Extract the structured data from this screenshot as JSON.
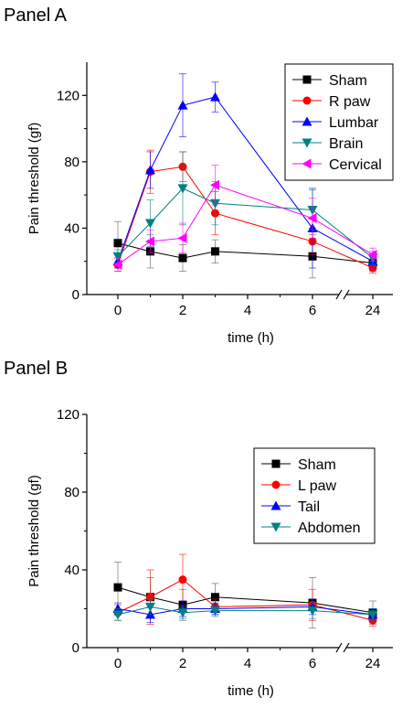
{
  "panels": {
    "a_title": "Panel A",
    "b_title": "Panel B"
  },
  "chart_data": [
    {
      "type": "line",
      "title": "Panel A",
      "xlabel": "time (h)",
      "ylabel": "Pain threshold (gf)",
      "x_ticks": [
        "0",
        "2",
        "4",
        "6",
        "24"
      ],
      "x": [
        0,
        1,
        2,
        3,
        6,
        24
      ],
      "ylim": [
        0,
        140
      ],
      "y_ticks": [
        "0",
        "40",
        "80",
        "120"
      ],
      "x_axis_break": "between 6 and 24",
      "legend_position": "top-right",
      "grid": false,
      "series": [
        {
          "name": "Sham",
          "color": "#000000",
          "marker": "square",
          "values": [
            31,
            26,
            22,
            26,
            23,
            19
          ],
          "errors": [
            13,
            10,
            8,
            7,
            13,
            5
          ]
        },
        {
          "name": "R paw",
          "color": "#ff0000",
          "marker": "circle",
          "values": [
            18,
            74,
            77,
            49,
            32,
            16
          ],
          "errors": [
            4,
            13,
            9,
            13,
            8,
            3
          ]
        },
        {
          "name": "Lumbar",
          "color": "#0000ff",
          "marker": "triangle-up",
          "values": [
            20,
            75,
            114,
            119,
            40,
            20
          ],
          "errors": [
            4,
            11,
            19,
            9,
            24,
            4
          ]
        },
        {
          "name": "Brain",
          "color": "#008080",
          "marker": "triangle-down",
          "values": [
            23,
            43,
            64,
            55,
            51,
            22
          ],
          "errors": [
            4,
            14,
            22,
            13,
            12,
            4
          ]
        },
        {
          "name": "Cervical",
          "color": "#ff00ff",
          "marker": "triangle-left",
          "values": [
            18,
            32,
            34,
            66,
            46,
            24
          ],
          "errors": [
            4,
            7,
            9,
            12,
            12,
            4
          ]
        }
      ]
    },
    {
      "type": "line",
      "title": "Panel B",
      "xlabel": "time (h)",
      "ylabel": "Pain threshold (gf)",
      "x_ticks": [
        "0",
        "2",
        "4",
        "6",
        "24"
      ],
      "x": [
        0,
        1,
        2,
        3,
        6,
        24
      ],
      "ylim": [
        0,
        120
      ],
      "y_ticks": [
        "0",
        "40",
        "80",
        "120"
      ],
      "x_axis_break": "between 6 and 24",
      "legend_position": "right",
      "grid": false,
      "series": [
        {
          "name": "Sham",
          "color": "#000000",
          "marker": "square",
          "values": [
            31,
            26,
            22,
            26,
            23,
            18
          ],
          "errors": [
            13,
            10,
            8,
            7,
            13,
            6
          ]
        },
        {
          "name": "L paw",
          "color": "#ff0000",
          "marker": "circle",
          "values": [
            18,
            26,
            35,
            21,
            22,
            14
          ],
          "errors": [
            4,
            14,
            13,
            4,
            8,
            3
          ]
        },
        {
          "name": "Tail",
          "color": "#0000ff",
          "marker": "triangle-up",
          "values": [
            20,
            17,
            20,
            20,
            21,
            17
          ],
          "errors": [
            3,
            4,
            4,
            3,
            4,
            3
          ]
        },
        {
          "name": "Abdomen",
          "color": "#008080",
          "marker": "triangle-down",
          "values": [
            17,
            21,
            18,
            19,
            19,
            17
          ],
          "errors": [
            3,
            4,
            3,
            3,
            4,
            3
          ]
        }
      ]
    }
  ]
}
